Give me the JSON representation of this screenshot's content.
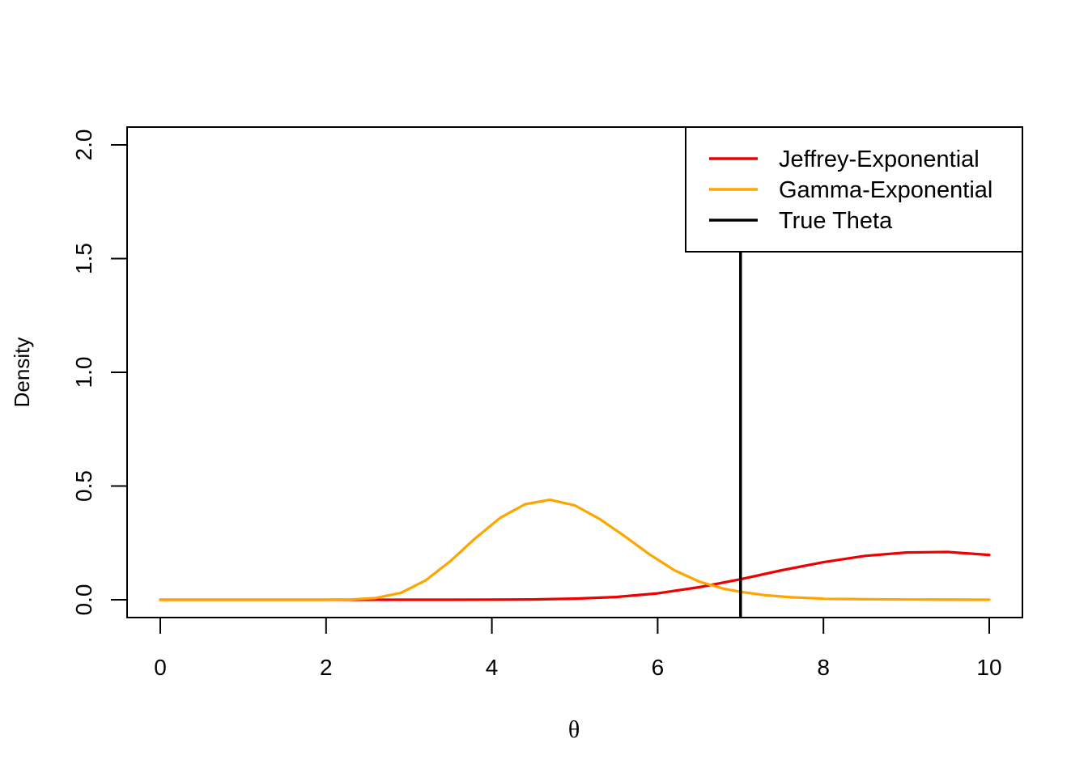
{
  "chart_data": {
    "type": "line",
    "title": "",
    "xlabel": "θ",
    "ylabel": "Density",
    "xlim": [
      0,
      10
    ],
    "ylim": [
      0,
      2
    ],
    "x_ticks": [
      "0",
      "2",
      "4",
      "6",
      "8",
      "10"
    ],
    "y_ticks": [
      "0.0",
      "0.5",
      "1.0",
      "1.5",
      "2.0"
    ],
    "grid": false,
    "legend_position": "top-right",
    "series": [
      {
        "name": "Jeffrey-Exponential",
        "color": "#ee0000",
        "x": [
          0,
          1,
          2,
          2.5,
          3,
          3.5,
          4,
          4.5,
          5,
          5.5,
          6,
          6.5,
          7,
          7.5,
          8,
          8.5,
          9,
          9.5,
          10
        ],
        "y": [
          0,
          0,
          0,
          0,
          0,
          0.0001,
          0.0005,
          0.0015,
          0.005,
          0.012,
          0.028,
          0.055,
          0.09,
          0.13,
          0.165,
          0.193,
          0.208,
          0.21,
          0.197
        ]
      },
      {
        "name": "Gamma-Exponential",
        "color": "#ffa500",
        "x": [
          0,
          1,
          2,
          2.3,
          2.6,
          2.9,
          3.2,
          3.5,
          3.8,
          4.1,
          4.4,
          4.7,
          5.0,
          5.3,
          5.6,
          5.9,
          6.2,
          6.5,
          6.8,
          7.0,
          7.3,
          7.6,
          8.0,
          8.5,
          9,
          10
        ],
        "y": [
          0,
          0,
          0,
          0.001,
          0.008,
          0.03,
          0.085,
          0.17,
          0.27,
          0.36,
          0.42,
          0.44,
          0.415,
          0.355,
          0.28,
          0.2,
          0.13,
          0.08,
          0.048,
          0.035,
          0.02,
          0.011,
          0.005,
          0.002,
          0.001,
          0
        ]
      }
    ],
    "reference_lines": [
      {
        "name": "True Theta",
        "orientation": "vertical",
        "x": 7,
        "color": "#000000"
      }
    ]
  }
}
